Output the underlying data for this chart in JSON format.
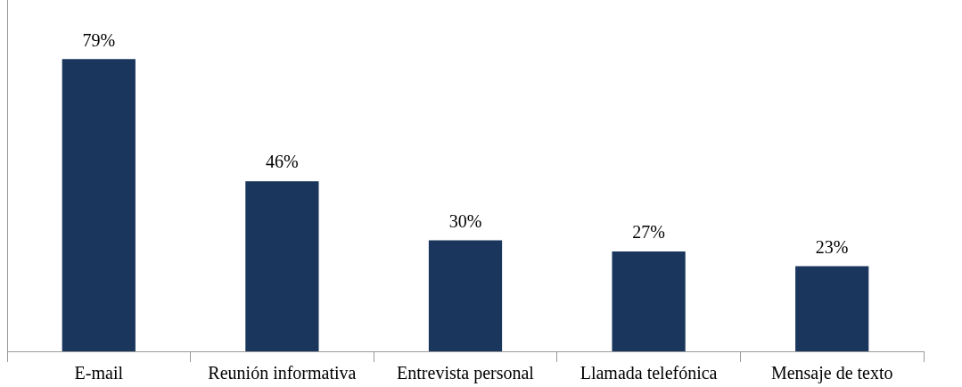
{
  "chart_data": {
    "type": "bar",
    "categories": [
      "E-mail",
      "Reunión informativa",
      "Entrevista personal",
      "Llamada telefónica",
      "Mensaje de texto"
    ],
    "values": [
      79,
      46,
      30,
      27,
      23
    ],
    "value_labels": [
      "79%",
      "46%",
      "30%",
      "27%",
      "23%"
    ],
    "color": "#1a365d",
    "ylim": [
      0,
      95
    ],
    "tick_labels": "x",
    "grid": false,
    "legend": false
  }
}
